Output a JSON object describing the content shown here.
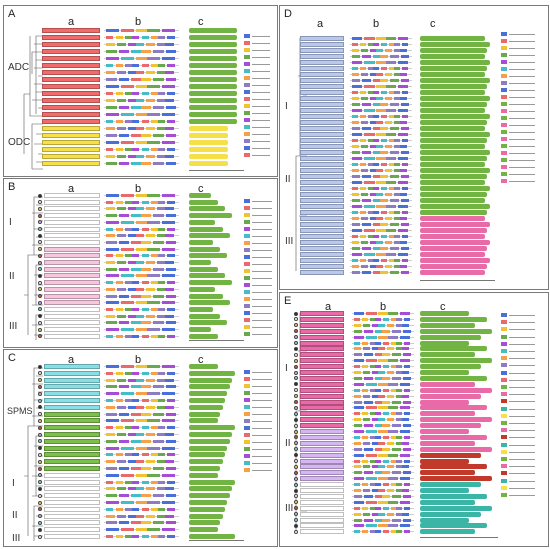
{
  "panels": {
    "A": {
      "label": "A",
      "cols": [
        "a",
        "b",
        "c"
      ],
      "groups": [
        "ADC",
        "ODC"
      ]
    },
    "B": {
      "label": "B",
      "cols": [
        "a",
        "b",
        "c"
      ],
      "groups": [
        "I",
        "II",
        "III"
      ]
    },
    "C": {
      "label": "C",
      "cols": [
        "a",
        "b",
        "c"
      ],
      "groups": [
        "SPMS",
        "I",
        "II",
        "III"
      ]
    },
    "D": {
      "label": "D",
      "cols": [
        "a",
        "b",
        "c"
      ],
      "groups": [
        "I",
        "II",
        "III"
      ]
    },
    "E": {
      "label": "E",
      "cols": [
        "a",
        "b",
        "c"
      ],
      "groups": [
        "I",
        "II",
        "III"
      ]
    }
  },
  "colors": {
    "red": "#f26b6b",
    "yellow": "#f6e04a",
    "green": "#7cbf4d",
    "greenbar": "#72b443",
    "pink": "#e86aa6",
    "lightpink": "#f6c6de",
    "teal": "#3bb5a6",
    "cyan": "#86e0e6",
    "blue": "#b9c8ef",
    "darkred": "#c0392b",
    "violet": "#d6b6f2",
    "grey": "#d9d9d9"
  }
}
